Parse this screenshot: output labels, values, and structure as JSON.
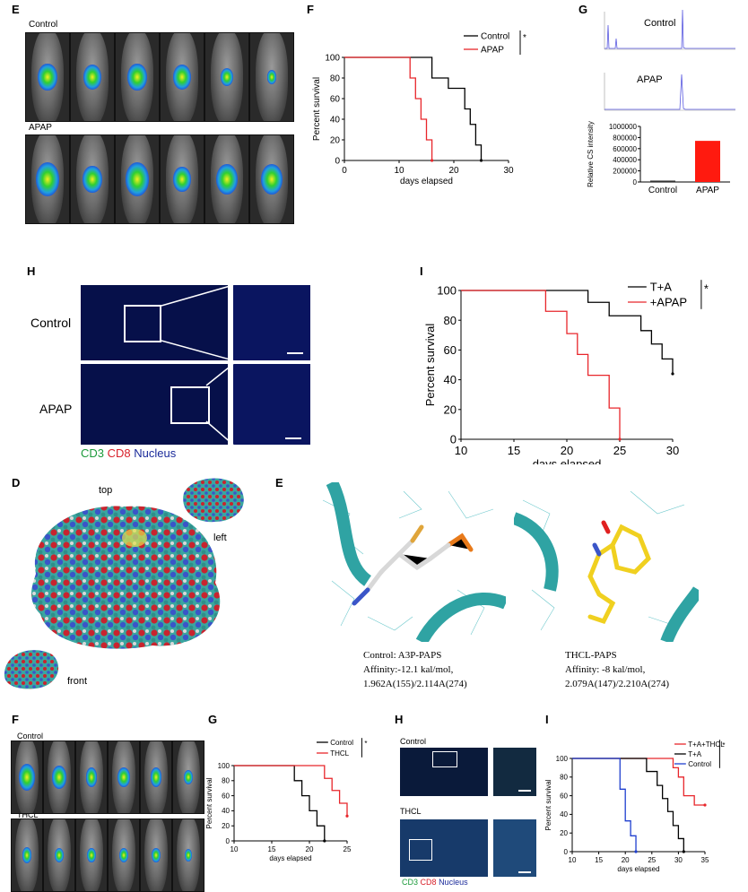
{
  "panels": {
    "E_top": {
      "letter": "E",
      "control": "Control",
      "apap": "APAP"
    },
    "F_top": {
      "letter": "F"
    },
    "G_top": {
      "letter": "G",
      "control": "Control",
      "apap": "APAP",
      "bar_ylabel": "Relative CS intensity",
      "bar_categories": [
        "Control",
        "APAP"
      ],
      "bar_yticks": [
        "0",
        "200000",
        "400000",
        "600000",
        "800000",
        "1000000"
      ]
    },
    "H_top": {
      "letter": "H",
      "control": "Control",
      "apap": "APAP",
      "legend": {
        "cd3": "CD3",
        "cd8": "CD8",
        "nucleus": "Nucleus"
      }
    },
    "I_top": {
      "letter": "I"
    },
    "D": {
      "letter": "D",
      "top": "top",
      "left": "left",
      "front": "front"
    },
    "E_mid": {
      "letter": "E",
      "cap1_l1": "Control: A3P-PAPS",
      "cap1_l2": "Affinity:-12.1 kal/mol,",
      "cap1_l3": "1.962A(155)/2.114A(274)",
      "cap2_l1": "THCL-PAPS",
      "cap2_l2": "Affinity:  -8 kal/mol,",
      "cap2_l3": "2.079A(147)/2.210A(274)"
    },
    "F_bot": {
      "letter": "F",
      "control": "Control",
      "thcl": "THCL"
    },
    "G_bot": {
      "letter": "G"
    },
    "H_bot": {
      "letter": "H",
      "control": "Control",
      "thcl": "THCL",
      "legend": {
        "cd3": "CD3",
        "cd8": "CD8",
        "nucleus": "Nucleus"
      }
    },
    "I_bot": {
      "letter": "I"
    }
  },
  "colors": {
    "control": "#000000",
    "treated": "#e8262b",
    "blue": "#1f3fcf",
    "bar": "#ff1a0f",
    "surface_teal": "#3aa6a0",
    "surface_red": "#c8242f",
    "surface_blue": "#3a55c8"
  },
  "chart_data": [
    {
      "id": "F_top",
      "type": "line",
      "xlabel": "days elapsed",
      "ylabel": "Percent survival",
      "xlim": [
        0,
        30
      ],
      "ylim": [
        0,
        100
      ],
      "xticks": [
        0,
        10,
        20,
        30
      ],
      "yticks": [
        0,
        20,
        40,
        60,
        80,
        100
      ],
      "significance": "*",
      "series": [
        {
          "name": "Control",
          "color": "#000000",
          "x": [
            0,
            15,
            16,
            18,
            19,
            22,
            23,
            24,
            25
          ],
          "y": [
            100,
            100,
            80,
            80,
            70,
            50,
            35,
            15,
            0
          ]
        },
        {
          "name": "APAP",
          "color": "#e8262b",
          "x": [
            0,
            11,
            12,
            13,
            14,
            15,
            16
          ],
          "y": [
            100,
            100,
            80,
            60,
            40,
            20,
            0
          ]
        }
      ]
    },
    {
      "id": "G_top_bar",
      "type": "bar",
      "categories": [
        "Control",
        "APAP"
      ],
      "values": [
        25000,
        740000
      ],
      "ylim": [
        0,
        1000000
      ],
      "ylabel": "Relative CS intensity"
    },
    {
      "id": "I_top",
      "type": "line",
      "xlabel": "days elapsed",
      "ylabel": "Percent survival",
      "xlim": [
        10,
        30
      ],
      "ylim": [
        0,
        100
      ],
      "xticks": [
        10,
        15,
        20,
        25,
        30
      ],
      "yticks": [
        0,
        20,
        40,
        60,
        80,
        100
      ],
      "significance": "*",
      "series": [
        {
          "name": "T+A",
          "color": "#000000",
          "x": [
            10,
            21,
            22,
            24,
            26,
            27,
            28,
            29,
            30
          ],
          "y": [
            100,
            100,
            92,
            83,
            83,
            73,
            64,
            54,
            44
          ]
        },
        {
          "name": "+APAP",
          "color": "#e8262b",
          "x": [
            10,
            17,
            18,
            20,
            21,
            22,
            24,
            25
          ],
          "y": [
            100,
            100,
            86,
            71,
            57,
            43,
            21,
            0
          ]
        }
      ]
    },
    {
      "id": "G_bot",
      "type": "line",
      "xlabel": "days elapsed",
      "ylabel": "Percent survival",
      "xlim": [
        10,
        25
      ],
      "ylim": [
        0,
        100
      ],
      "xticks": [
        10,
        15,
        20,
        25
      ],
      "yticks": [
        0,
        20,
        40,
        60,
        80,
        100
      ],
      "significance": "*",
      "series": [
        {
          "name": "Control",
          "color": "#000000",
          "x": [
            10,
            17,
            18,
            19,
            20,
            21,
            22
          ],
          "y": [
            100,
            100,
            80,
            60,
            40,
            20,
            0
          ]
        },
        {
          "name": "THCL",
          "color": "#e8262b",
          "x": [
            10,
            20,
            22,
            23,
            24,
            25
          ],
          "y": [
            100,
            100,
            83,
            67,
            50,
            33
          ]
        }
      ]
    },
    {
      "id": "I_bot",
      "type": "line",
      "xlabel": "days elapsed",
      "ylabel": "Percent survival",
      "xlim": [
        10,
        35
      ],
      "ylim": [
        0,
        100
      ],
      "xticks": [
        10,
        15,
        20,
        25,
        30,
        35
      ],
      "yticks": [
        0,
        20,
        40,
        60,
        80,
        100
      ],
      "significance": "*",
      "series": [
        {
          "name": "T+A+THCL",
          "color": "#e8262b",
          "x": [
            10,
            27,
            29,
            30,
            31,
            33,
            35
          ],
          "y": [
            100,
            100,
            90,
            80,
            60,
            50,
            50
          ]
        },
        {
          "name": "T+A",
          "color": "#000000",
          "x": [
            10,
            22,
            24,
            26,
            27,
            28,
            29,
            30,
            31
          ],
          "y": [
            100,
            100,
            86,
            71,
            57,
            43,
            28,
            14,
            0
          ]
        },
        {
          "name": "Control",
          "color": "#1f3fcf",
          "x": [
            10,
            18,
            19,
            20,
            21,
            22
          ],
          "y": [
            100,
            100,
            67,
            33,
            17,
            0
          ]
        }
      ]
    }
  ]
}
